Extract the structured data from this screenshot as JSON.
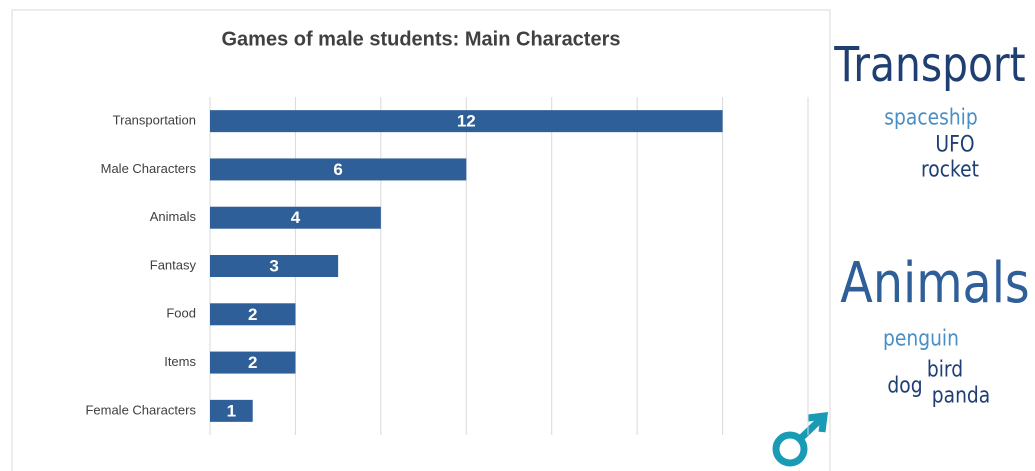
{
  "chart_data": {
    "type": "bar",
    "orientation": "horizontal",
    "title": "Games of male students: Main Characters",
    "categories": [
      "Transportation",
      "Male Characters",
      "Animals",
      "Fantasy",
      "Food",
      "Items",
      "Female Characters"
    ],
    "values": [
      12,
      6,
      4,
      3,
      2,
      2,
      1
    ],
    "color": "#2f5f98",
    "xlim": [
      0,
      14
    ],
    "xticks": [
      0,
      2,
      4,
      6,
      8,
      10,
      12,
      14
    ],
    "show_tick_labels": false,
    "grid": true
  },
  "word_clouds": [
    {
      "words": [
        {
          "text": "Transport",
          "color": "#1f3f73"
        },
        {
          "text": "spaceship",
          "color": "#4a8fc4"
        },
        {
          "text": "UFO",
          "color": "#1f3f73"
        },
        {
          "text": "rocket",
          "color": "#1f3f73"
        }
      ]
    },
    {
      "words": [
        {
          "text": "Animals",
          "color": "#2f5f98"
        },
        {
          "text": "penguin",
          "color": "#4a8fc4"
        },
        {
          "text": "bird",
          "color": "#1f3f73"
        },
        {
          "text": "dog",
          "color": "#1f3f73"
        },
        {
          "text": "panda",
          "color": "#1f3f73"
        }
      ]
    }
  ]
}
